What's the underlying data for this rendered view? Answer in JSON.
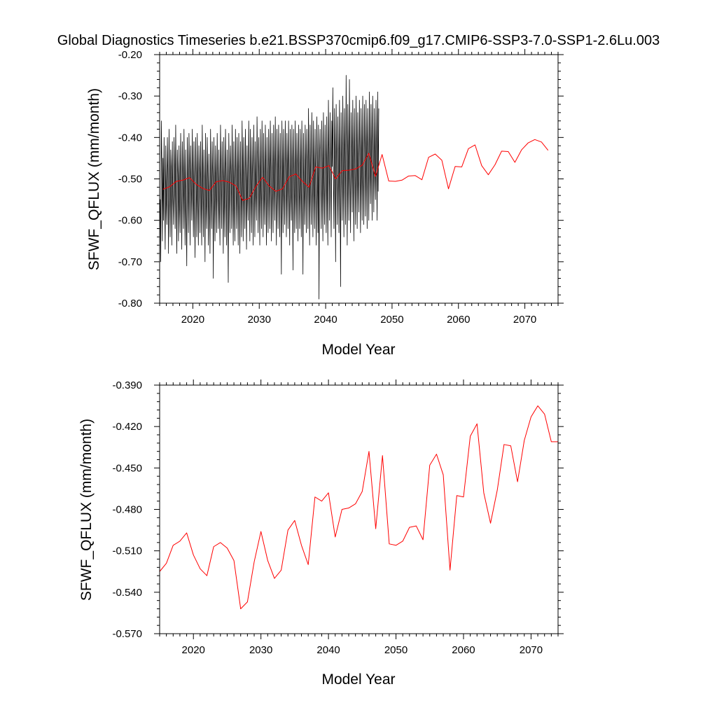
{
  "title": "Global Diagnostics Timeseries b.e21.BSSP370cmip6.f09_g17.CMIP6-SSP3-7.0-SSP1-2.6Lu.003",
  "colors": {
    "monthly": "#000000",
    "annual": "#ff0000",
    "axes": "#000000"
  },
  "chart_data": [
    {
      "type": "line",
      "title": "",
      "xlabel": "Model Year",
      "ylabel": "SFWF_QFLUX (mm/month)",
      "xlim": [
        2015,
        2075
      ],
      "ylim": [
        -0.8,
        -0.2
      ],
      "xticks": [
        2020,
        2030,
        2040,
        2050,
        2060,
        2070
      ],
      "yticks": [
        "-0.20",
        "-0.30",
        "-0.40",
        "-0.50",
        "-0.60",
        "-0.70",
        "-0.80"
      ],
      "ytick_values": [
        -0.2,
        -0.3,
        -0.4,
        -0.5,
        -0.6,
        -0.7,
        -0.8
      ],
      "grid": false,
      "series": [
        {
          "name": "",
          "style": "monthly",
          "color": "#000000",
          "x_start": 2015.0,
          "x_step": 0.0833333,
          "values": [
            -0.57,
            -0.55,
            -0.7,
            -0.36,
            -0.46,
            -0.65,
            -0.45,
            -0.6,
            -0.4,
            -0.53,
            -0.67,
            -0.42,
            -0.55,
            -0.61,
            -0.4,
            -0.5,
            -0.68,
            -0.38,
            -0.52,
            -0.64,
            -0.43,
            -0.48,
            -0.66,
            -0.41,
            -0.54,
            -0.61,
            -0.4,
            -0.5,
            -0.62,
            -0.37,
            -0.52,
            -0.68,
            -0.43,
            -0.49,
            -0.65,
            -0.42,
            -0.56,
            -0.63,
            -0.39,
            -0.51,
            -0.67,
            -0.41,
            -0.5,
            -0.62,
            -0.38,
            -0.53,
            -0.66,
            -0.43,
            -0.57,
            -0.71,
            -0.4,
            -0.52,
            -0.63,
            -0.39,
            -0.48,
            -0.66,
            -0.42,
            -0.51,
            -0.6,
            -0.38,
            -0.52,
            -0.64,
            -0.41,
            -0.55,
            -0.69,
            -0.4,
            -0.5,
            -0.64,
            -0.39,
            -0.54,
            -0.66,
            -0.42,
            -0.49,
            -0.63,
            -0.41,
            -0.53,
            -0.66,
            -0.37,
            -0.51,
            -0.64,
            -0.43,
            -0.52,
            -0.7,
            -0.39,
            -0.55,
            -0.62,
            -0.4,
            -0.5,
            -0.66,
            -0.44,
            -0.56,
            -0.68,
            -0.38,
            -0.52,
            -0.62,
            -0.41,
            -0.5,
            -0.74,
            -0.4,
            -0.53,
            -0.65,
            -0.42,
            -0.51,
            -0.63,
            -0.39,
            -0.52,
            -0.62,
            -0.43,
            -0.55,
            -0.66,
            -0.37,
            -0.49,
            -0.62,
            -0.41,
            -0.52,
            -0.68,
            -0.4,
            -0.54,
            -0.64,
            -0.38,
            -0.5,
            -0.66,
            -0.43,
            -0.55,
            -0.75,
            -0.39,
            -0.51,
            -0.63,
            -0.42,
            -0.49,
            -0.62,
            -0.37,
            -0.53,
            -0.66,
            -0.41,
            -0.54,
            -0.65,
            -0.38,
            -0.51,
            -0.62,
            -0.4,
            -0.52,
            -0.66,
            -0.39,
            -0.5,
            -0.68,
            -0.41,
            -0.52,
            -0.64,
            -0.36,
            -0.49,
            -0.65,
            -0.4,
            -0.53,
            -0.62,
            -0.38,
            -0.51,
            -0.67,
            -0.42,
            -0.54,
            -0.6,
            -0.36,
            -0.5,
            -0.65,
            -0.38,
            -0.52,
            -0.63,
            -0.4,
            -0.51,
            -0.66,
            -0.37,
            -0.49,
            -0.64,
            -0.41,
            -0.53,
            -0.6,
            -0.35,
            -0.48,
            -0.63,
            -0.4,
            -0.5,
            -0.66,
            -0.38,
            -0.52,
            -0.62,
            -0.36,
            -0.49,
            -0.64,
            -0.39,
            -0.53,
            -0.61,
            -0.37,
            -0.5,
            -0.66,
            -0.4,
            -0.52,
            -0.63,
            -0.38,
            -0.48,
            -0.62,
            -0.36,
            -0.5,
            -0.65,
            -0.39,
            -0.51,
            -0.63,
            -0.37,
            -0.49,
            -0.6,
            -0.35,
            -0.52,
            -0.66,
            -0.38,
            -0.5,
            -0.62,
            -0.37,
            -0.48,
            -0.64,
            -0.39,
            -0.51,
            -0.73,
            -0.36,
            -0.49,
            -0.63,
            -0.38,
            -0.52,
            -0.61,
            -0.36,
            -0.5,
            -0.64,
            -0.39,
            -0.48,
            -0.62,
            -0.36,
            -0.51,
            -0.66,
            -0.38,
            -0.53,
            -0.6,
            -0.37,
            -0.49,
            -0.72,
            -0.38,
            -0.5,
            -0.63,
            -0.36,
            -0.52,
            -0.62,
            -0.39,
            -0.48,
            -0.65,
            -0.37,
            -0.51,
            -0.62,
            -0.38,
            -0.5,
            -0.64,
            -0.36,
            -0.49,
            -0.73,
            -0.39,
            -0.52,
            -0.61,
            -0.37,
            -0.5,
            -0.63,
            -0.38,
            -0.47,
            -0.62,
            -0.33,
            -0.49,
            -0.66,
            -0.37,
            -0.52,
            -0.61,
            -0.34,
            -0.48,
            -0.64,
            -0.36,
            -0.5,
            -0.62,
            -0.38,
            -0.51,
            -0.66,
            -0.35,
            -0.47,
            -0.63,
            -0.37,
            -0.79,
            -0.45,
            -0.38,
            -0.5,
            -0.62,
            -0.36,
            -0.48,
            -0.65,
            -0.34,
            -0.51,
            -0.61,
            -0.37,
            -0.47,
            -0.63,
            -0.35,
            -0.5,
            -0.66,
            -0.31,
            -0.46,
            -0.6,
            -0.34,
            -0.49,
            -0.64,
            -0.36,
            -0.47,
            -0.28,
            -0.5,
            -0.62,
            -0.33,
            -0.45,
            -0.7,
            -0.32,
            -0.48,
            -0.61,
            -0.35,
            -0.46,
            -0.63,
            -0.31,
            -0.49,
            -0.76,
            -0.34,
            -0.47,
            -0.6,
            -0.3,
            -0.48,
            -0.64,
            -0.33,
            -0.45,
            -0.61,
            -0.25,
            -0.47,
            -0.66,
            -0.32,
            -0.46,
            -0.6,
            -0.26,
            -0.49,
            -0.63,
            -0.34,
            -0.45,
            -0.58,
            -0.31,
            -0.47,
            -0.65,
            -0.33,
            -0.48,
            -0.61,
            -0.3,
            -0.46,
            -0.62,
            -0.34,
            -0.49,
            -0.58,
            -0.31,
            -0.45,
            -0.63,
            -0.33,
            -0.47,
            -0.6,
            -0.3,
            -0.48,
            -0.61,
            -0.32,
            -0.44,
            -0.59,
            -0.31,
            -0.47,
            -0.62,
            -0.33,
            -0.45,
            -0.6,
            -0.29,
            -0.47,
            -0.56,
            -0.32,
            -0.46,
            -0.6,
            -0.3,
            -0.44,
            -0.58,
            -0.33,
            -0.48,
            -0.55,
            -0.31,
            -0.46,
            -0.6,
            -0.29,
            -0.53,
            -0.33
          ]
        },
        {
          "name": "",
          "style": "annual",
          "color": "#ff0000",
          "x_start": 2015.5,
          "x_step": 1,
          "values": [
            -0.525,
            -0.519,
            -0.506,
            -0.503,
            -0.497,
            -0.513,
            -0.523,
            -0.528,
            -0.507,
            -0.504,
            -0.508,
            -0.517,
            -0.552,
            -0.547,
            -0.518,
            -0.496,
            -0.517,
            -0.53,
            -0.524,
            -0.495,
            -0.488,
            -0.506,
            -0.52,
            -0.471,
            -0.474,
            -0.468,
            -0.5,
            -0.48,
            -0.479,
            -0.476,
            -0.467,
            -0.438,
            -0.494,
            -0.441,
            -0.505,
            -0.506,
            -0.503,
            -0.493,
            -0.492,
            -0.502,
            -0.448,
            -0.44,
            -0.455,
            -0.524,
            -0.47,
            -0.471,
            -0.427,
            -0.418,
            -0.468,
            -0.49,
            -0.466,
            -0.433,
            -0.434,
            -0.46,
            -0.43,
            -0.413,
            -0.405,
            -0.411,
            -0.431
          ]
        }
      ]
    },
    {
      "type": "line",
      "title": "",
      "xlabel": "Model Year",
      "ylabel": "SFWF_QFLUX (mm/month)",
      "xlim": [
        2015,
        2074
      ],
      "ylim": [
        -0.57,
        -0.39
      ],
      "xticks": [
        2020,
        2030,
        2040,
        2050,
        2060,
        2070
      ],
      "yticks": [
        "-0.390",
        "-0.420",
        "-0.450",
        "-0.480",
        "-0.510",
        "-0.540",
        "-0.570"
      ],
      "ytick_values": [
        -0.39,
        -0.42,
        -0.45,
        -0.48,
        -0.51,
        -0.54,
        -0.57
      ],
      "grid": false,
      "series": [
        {
          "name": "",
          "style": "annual",
          "color": "#ff0000",
          "x_start": 2015.0,
          "x_step": 1,
          "values": [
            -0.525,
            -0.519,
            -0.506,
            -0.503,
            -0.497,
            -0.513,
            -0.523,
            -0.528,
            -0.507,
            -0.504,
            -0.508,
            -0.517,
            -0.552,
            -0.547,
            -0.518,
            -0.496,
            -0.517,
            -0.53,
            -0.524,
            -0.495,
            -0.488,
            -0.506,
            -0.52,
            -0.471,
            -0.474,
            -0.468,
            -0.5,
            -0.48,
            -0.479,
            -0.476,
            -0.467,
            -0.438,
            -0.494,
            -0.441,
            -0.505,
            -0.506,
            -0.503,
            -0.493,
            -0.492,
            -0.502,
            -0.448,
            -0.44,
            -0.455,
            -0.524,
            -0.47,
            -0.471,
            -0.427,
            -0.418,
            -0.468,
            -0.49,
            -0.466,
            -0.433,
            -0.434,
            -0.46,
            -0.43,
            -0.413,
            -0.405,
            -0.411,
            -0.431,
            -0.431
          ]
        }
      ]
    }
  ]
}
